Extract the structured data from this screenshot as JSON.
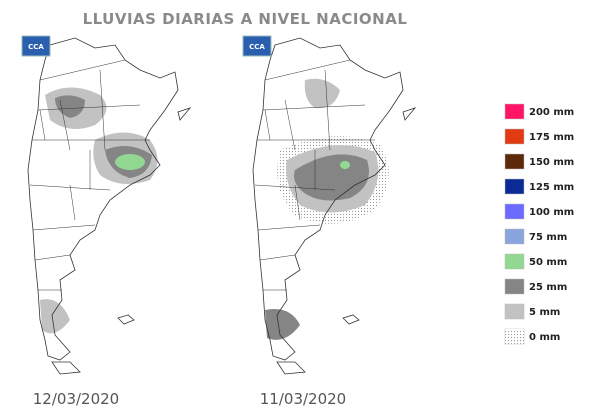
{
  "title": "LLUVIAS DIARIAS A NIVEL NACIONAL",
  "maps": [
    {
      "logo": "CCA",
      "date": "12/03/2020"
    },
    {
      "logo": "CCA",
      "date": "11/03/2020"
    }
  ],
  "legend": [
    {
      "label": "200 mm",
      "color": "#ff1466"
    },
    {
      "label": "175 mm",
      "color": "#e23a12"
    },
    {
      "label": "150 mm",
      "color": "#5c2a0a"
    },
    {
      "label": "125 mm",
      "color": "#0c2a96"
    },
    {
      "label": "100 mm",
      "color": "#6b6bff"
    },
    {
      "label": "75 mm",
      "color": "#8aa5de"
    },
    {
      "label": "50 mm",
      "color": "#92d892"
    },
    {
      "label": "25 mm",
      "color": "#858585"
    },
    {
      "label": "5 mm",
      "color": "#c2c2c2"
    },
    {
      "label": "0 mm",
      "color": "#f4f4f4"
    }
  ]
}
